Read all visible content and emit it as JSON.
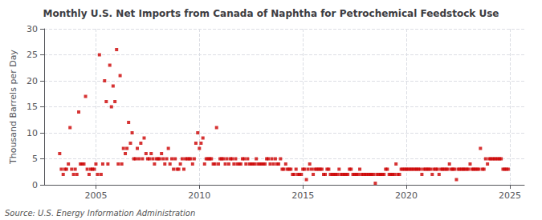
{
  "chart_data": {
    "type": "scatter",
    "title": "Monthly U.S. Net Imports from Canada of Naphtha for Petrochemical Feedstock Use",
    "ylabel": "Thousand Barrels per Day",
    "annotations": [
      "Source: U.S. Energy Information Administration"
    ],
    "color": "#CC0000",
    "marker": "square",
    "grid": true,
    "xlim": [
      2002.5,
      2025.7
    ],
    "xticks": [
      2005,
      2010,
      2015,
      2020,
      2025
    ],
    "ylim": [
      0,
      30
    ],
    "yticks": [
      0,
      5,
      10,
      15,
      20,
      25,
      30
    ],
    "x": [
      2003.25,
      2003.33,
      2003.42,
      2003.5,
      2003.58,
      2003.67,
      2003.75,
      2003.83,
      2003.92,
      2004.0,
      2004.08,
      2004.17,
      2004.25,
      2004.33,
      2004.42,
      2004.5,
      2004.58,
      2004.67,
      2004.75,
      2004.83,
      2004.92,
      2005.0,
      2005.08,
      2005.17,
      2005.25,
      2005.33,
      2005.42,
      2005.5,
      2005.58,
      2005.67,
      2005.75,
      2005.83,
      2005.92,
      2006.0,
      2006.08,
      2006.17,
      2006.25,
      2006.33,
      2006.42,
      2006.5,
      2006.58,
      2006.67,
      2006.75,
      2006.83,
      2006.92,
      2007.0,
      2007.08,
      2007.17,
      2007.25,
      2007.33,
      2007.42,
      2007.5,
      2007.58,
      2007.67,
      2007.75,
      2007.83,
      2007.92,
      2008.0,
      2008.08,
      2008.17,
      2008.25,
      2008.33,
      2008.42,
      2008.5,
      2008.58,
      2008.67,
      2008.75,
      2008.83,
      2008.92,
      2009.0,
      2009.08,
      2009.17,
      2009.25,
      2009.33,
      2009.42,
      2009.5,
      2009.58,
      2009.67,
      2009.75,
      2009.83,
      2009.92,
      2010.0,
      2010.08,
      2010.17,
      2010.25,
      2010.33,
      2010.42,
      2010.5,
      2010.58,
      2010.67,
      2010.75,
      2010.83,
      2010.92,
      2011.0,
      2011.08,
      2011.17,
      2011.25,
      2011.33,
      2011.42,
      2011.5,
      2011.58,
      2011.67,
      2011.75,
      2011.83,
      2011.92,
      2012.0,
      2012.08,
      2012.17,
      2012.25,
      2012.33,
      2012.42,
      2012.5,
      2012.58,
      2012.67,
      2012.75,
      2012.83,
      2012.92,
      2013.0,
      2013.08,
      2013.17,
      2013.25,
      2013.33,
      2013.42,
      2013.5,
      2013.58,
      2013.67,
      2013.75,
      2013.83,
      2013.92,
      2014.0,
      2014.08,
      2014.17,
      2014.25,
      2014.33,
      2014.42,
      2014.5,
      2014.58,
      2014.67,
      2014.75,
      2014.83,
      2014.92,
      2015.0,
      2015.08,
      2015.17,
      2015.25,
      2015.33,
      2015.42,
      2015.5,
      2015.58,
      2015.67,
      2015.75,
      2015.83,
      2015.92,
      2016.0,
      2016.08,
      2016.17,
      2016.25,
      2016.33,
      2016.42,
      2016.5,
      2016.58,
      2016.67,
      2016.75,
      2016.83,
      2016.92,
      2017.0,
      2017.08,
      2017.17,
      2017.25,
      2017.33,
      2017.42,
      2017.5,
      2017.58,
      2017.67,
      2017.75,
      2017.83,
      2017.92,
      2018.0,
      2018.08,
      2018.17,
      2018.25,
      2018.33,
      2018.42,
      2018.5,
      2018.58,
      2018.67,
      2018.75,
      2018.83,
      2018.92,
      2019.0,
      2019.08,
      2019.17,
      2019.25,
      2019.33,
      2019.42,
      2019.5,
      2019.58,
      2019.67,
      2019.75,
      2019.83,
      2019.92,
      2020.0,
      2020.08,
      2020.17,
      2020.25,
      2020.33,
      2020.42,
      2020.5,
      2020.58,
      2020.67,
      2020.75,
      2020.83,
      2020.92,
      2021.0,
      2021.08,
      2021.17,
      2021.25,
      2021.33,
      2021.42,
      2021.5,
      2021.58,
      2021.67,
      2021.75,
      2021.83,
      2021.92,
      2022.0,
      2022.08,
      2022.17,
      2022.25,
      2022.33,
      2022.42,
      2022.5,
      2022.58,
      2022.67,
      2022.75,
      2022.83,
      2022.92,
      2023.0,
      2023.08,
      2023.17,
      2023.25,
      2023.33,
      2023.42,
      2023.5,
      2023.58,
      2023.67,
      2023.75,
      2023.83,
      2023.92,
      2024.0,
      2024.08,
      2024.17,
      2024.25,
      2024.33,
      2024.42,
      2024.5,
      2024.58,
      2024.67,
      2024.75,
      2024.83,
      2024.92
    ],
    "values": [
      6,
      3,
      2,
      3,
      3,
      4,
      11,
      3,
      2,
      3,
      2,
      14,
      4,
      4,
      4,
      17,
      3,
      2,
      3,
      3,
      3,
      4,
      2,
      25,
      2,
      4,
      20,
      16,
      4,
      23,
      15,
      19,
      16,
      26,
      4,
      21,
      4,
      7,
      6,
      7,
      12,
      8,
      10,
      5,
      5,
      7,
      5,
      8,
      5,
      9,
      6,
      5,
      5,
      6,
      5,
      4,
      5,
      5,
      5,
      6,
      5,
      4,
      5,
      7,
      4,
      5,
      3,
      5,
      3,
      3,
      4,
      5,
      3,
      5,
      5,
      5,
      5,
      4,
      5,
      8,
      10,
      7,
      8,
      9,
      4,
      5,
      5,
      5,
      5,
      4,
      4,
      11,
      4,
      5,
      5,
      5,
      4,
      5,
      4,
      5,
      5,
      4,
      5,
      4,
      4,
      4,
      5,
      5,
      4,
      5,
      4,
      4,
      4,
      4,
      5,
      4,
      4,
      4,
      4,
      4,
      5,
      5,
      4,
      5,
      4,
      5,
      4,
      4,
      5,
      3,
      3,
      4,
      3,
      3,
      3,
      2,
      2,
      3,
      2,
      2,
      2,
      3,
      3,
      1,
      3,
      4,
      3,
      2,
      3,
      3,
      3,
      3,
      3,
      2,
      2,
      3,
      3,
      2,
      2,
      2,
      2,
      2,
      3,
      2,
      2,
      2,
      2,
      2,
      3,
      3,
      2,
      2,
      2,
      2,
      3,
      2,
      2,
      2,
      2,
      2,
      2,
      2,
      2,
      0.3,
      2,
      2,
      2,
      2,
      2,
      3,
      3,
      2,
      2,
      2,
      2,
      4,
      2,
      2,
      3,
      3,
      3,
      3,
      3,
      3,
      3,
      3,
      3,
      3,
      3,
      3,
      2,
      3,
      3,
      3,
      3,
      3,
      2,
      3,
      3,
      3,
      2,
      3,
      3,
      3,
      3,
      3,
      4,
      3,
      3,
      3,
      1,
      3,
      3,
      3,
      3,
      3,
      3,
      3,
      4,
      3,
      3,
      3,
      3,
      3,
      7,
      3,
      3,
      5,
      4,
      5,
      5,
      5,
      5,
      5,
      5,
      5,
      5,
      3,
      3,
      3,
      3
    ]
  }
}
